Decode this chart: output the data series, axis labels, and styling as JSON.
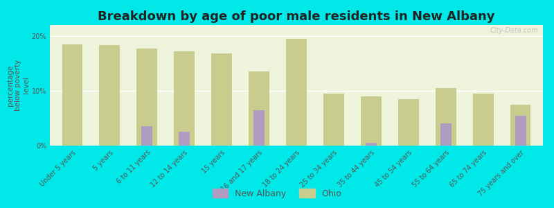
{
  "title": "Breakdown by age of poor male residents in New Albany",
  "ylabel": "percentage\nbelow poverty\nlevel",
  "categories": [
    "Under 5 years",
    "5 years",
    "6 to 11 years",
    "12 to 14 years",
    "15 years",
    "16 and 17 years",
    "18 to 24 years",
    "25 to 34 years",
    "35 to 44 years",
    "45 to 54 years",
    "55 to 64 years",
    "65 to 74 years",
    "75 years and over"
  ],
  "new_albany": [
    0,
    0,
    3.5,
    2.5,
    0,
    6.5,
    0,
    0,
    0.5,
    0,
    4.0,
    0,
    5.5
  ],
  "ohio": [
    18.5,
    18.3,
    17.7,
    17.2,
    16.8,
    13.5,
    19.5,
    9.5,
    9.0,
    8.5,
    10.5,
    9.5,
    7.5
  ],
  "new_albany_color": "#b09cc0",
  "ohio_color": "#c8cc8c",
  "background_color": "#00e8e8",
  "plot_bg_color": "#eef3dc",
  "ylim": [
    0,
    22
  ],
  "yticks": [
    0,
    10,
    20
  ],
  "ytick_labels": [
    "0%",
    "10%",
    "20%"
  ],
  "ohio_bar_width": 0.55,
  "na_bar_width": 0.3,
  "title_fontsize": 13,
  "axis_label_fontsize": 7.5,
  "tick_fontsize": 7,
  "watermark": "City-Data.com"
}
